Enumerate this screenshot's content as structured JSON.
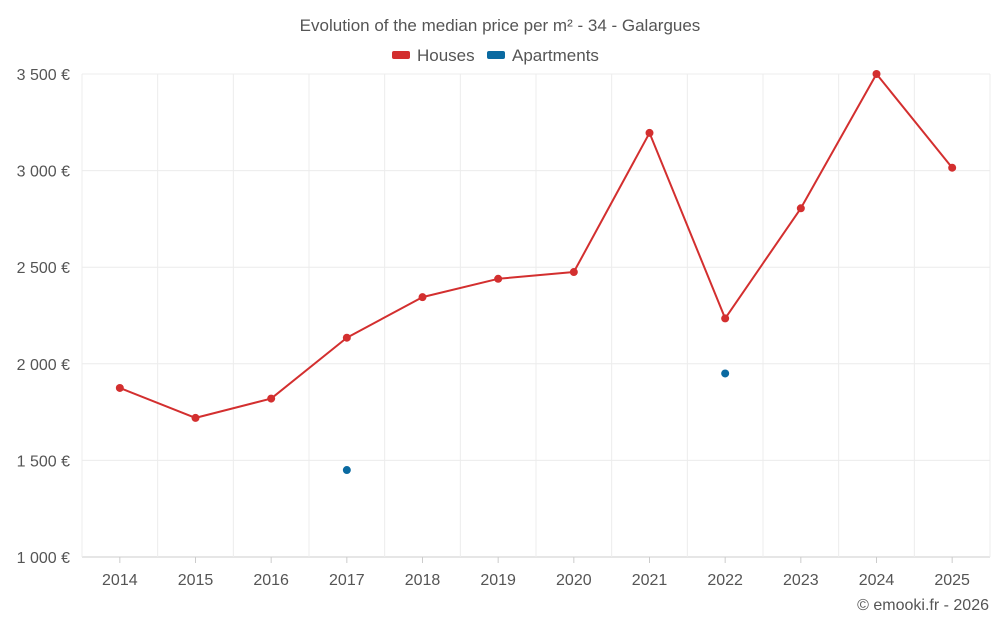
{
  "chart_data": {
    "type": "line",
    "title": "Evolution of the median price per m² - 34 - Galargues",
    "xlabel": "",
    "ylabel": "",
    "categories": [
      "2014",
      "2015",
      "2016",
      "2017",
      "2018",
      "2019",
      "2020",
      "2021",
      "2022",
      "2023",
      "2024",
      "2025"
    ],
    "ylim": [
      1000,
      3500
    ],
    "yticks": [
      1000,
      1500,
      2000,
      2500,
      3000,
      3500
    ],
    "ytick_labels": [
      "1 000 €",
      "1 500 €",
      "2 000 €",
      "2 500 €",
      "3 000 €",
      "3 500 €"
    ],
    "grid": true,
    "legend_position": "top-center",
    "series": [
      {
        "name": "Houses",
        "color": "#d32f2f",
        "line": true,
        "values": [
          1875,
          1720,
          1820,
          2135,
          2345,
          2440,
          2475,
          3195,
          2235,
          2805,
          3500,
          3015
        ]
      },
      {
        "name": "Apartments",
        "color": "#0a6aa1",
        "line": false,
        "values": [
          null,
          null,
          null,
          1450,
          null,
          null,
          null,
          null,
          1950,
          null,
          null,
          null
        ]
      }
    ],
    "credit": "© emooki.fr - 2026"
  }
}
